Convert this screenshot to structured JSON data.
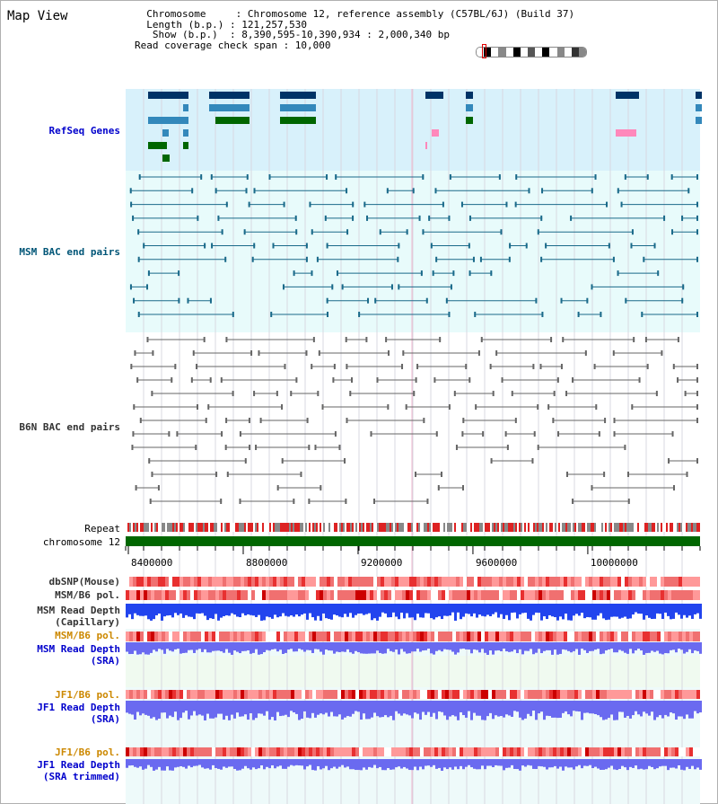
{
  "app": {
    "title": "Map View"
  },
  "info": {
    "lines": [
      "  Chromosome     : Chromosome 12, reference assembly (C57BL/6J) (Build 37)",
      "  Length (b.p.) : 121,257,530",
      "   Show (b.p.)  : 8,390,595-10,390,934 : 2,000,340 bp",
      "Read coverage check span : 10,000"
    ]
  },
  "tracks": {
    "refseq": "RefSeq Genes",
    "msm_bac": "MSM BAC end pairs",
    "b6n_bac": "B6N BAC end pairs",
    "repeat": "Repeat",
    "chromosome": "chromosome 12",
    "dbsnp": "dbSNP(Mouse)",
    "msm_b6_pol": "MSM/B6 pol.",
    "msm_depth_cap_1": "MSM Read Depth",
    "msm_depth_cap_2": "(Capillary)",
    "msm_b6_pol_sra": "MSM/B6 pol.",
    "msm_depth_sra_1": "MSM Read Depth",
    "msm_depth_sra_2": "(SRA)",
    "jf1_b6_pol": "JF1/B6 pol.",
    "jf1_depth_1": "JF1 Read Depth",
    "jf1_depth_2": "(SRA)",
    "jf1_b6_pol_2": "JF1/B6 pol.",
    "jf1_depth_trim_1": "JF1 Read Depth",
    "jf1_depth_trim_2": "(SRA trimmed)"
  },
  "axis": {
    "start": 8390595,
    "end": 10390934,
    "tick_labels": [
      "8400000",
      "8800000",
      "9200000",
      "9600000",
      "10000000"
    ],
    "tick_values": [
      8400000,
      8800000,
      9200000,
      9600000,
      10000000
    ]
  },
  "colors": {
    "label_blue": "#0000cc",
    "label_teal": "#005577",
    "label_gray": "#333333",
    "label_orange": "#cc8800",
    "refseq_bg": "#d8f1fb",
    "msm_bg": "#e8fbfb",
    "chrom_green": "#006600",
    "depth_blue": "#2244ee",
    "depth_light": "#6a6af0"
  },
  "ideogram": {
    "bands": [
      "#ffffff",
      "#000000",
      "#ffffff",
      "#888888",
      "#ffffff",
      "#000000",
      "#ffffff",
      "#555555",
      "#ffffff",
      "#000000",
      "#ffffff",
      "#888888",
      "#ffffff",
      "#333333",
      "#888888"
    ]
  }
}
